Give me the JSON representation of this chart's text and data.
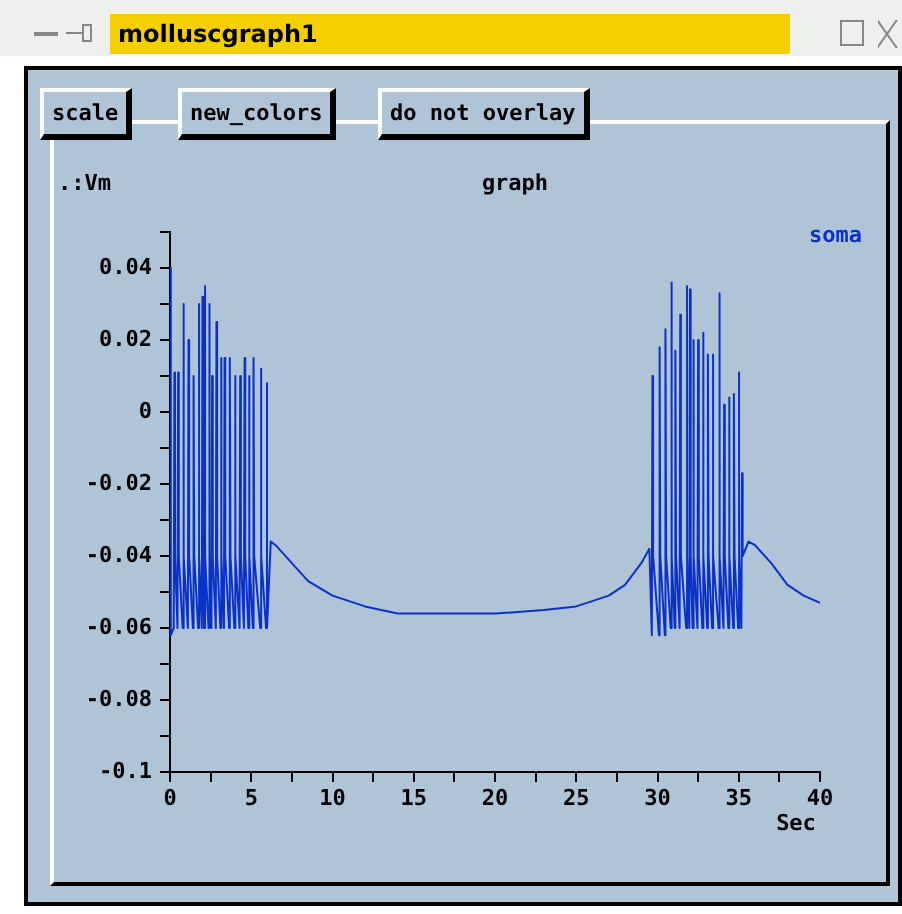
{
  "chart_data": {
    "type": "line",
    "title": "graph",
    "ylabel": ".:Vm",
    "xlabel": "Sec",
    "series": [
      {
        "name": "soma",
        "color": "#0a32c8",
        "x": [
          0,
          0.05,
          0.23,
          0.27,
          0.31,
          0.46,
          0.5,
          0.54,
          0.78,
          0.82,
          0.86,
          1.1,
          1.14,
          1.18,
          1.41,
          1.45,
          1.49,
          1.73,
          1.77,
          1.81,
          1.96,
          2.0,
          2.04,
          2.1,
          2.14,
          2.18,
          2.37,
          2.41,
          2.45,
          2.55,
          2.59,
          2.63,
          2.82,
          2.86,
          2.9,
          3.1,
          3.14,
          3.18,
          3.32,
          3.36,
          3.4,
          3.64,
          3.68,
          3.72,
          3.96,
          4.0,
          4.04,
          4.28,
          4.32,
          4.36,
          4.55,
          4.59,
          4.63,
          4.82,
          4.86,
          4.9,
          5.1,
          5.14,
          5.18,
          5.55,
          5.59,
          5.63,
          5.91,
          5.95,
          5.99,
          6.2,
          6.5,
          7.5,
          8.5,
          10,
          12,
          14,
          17,
          20,
          23,
          25,
          27,
          28,
          29,
          29.5,
          29.65,
          29.69,
          29.73,
          30.09,
          30.13,
          30.17,
          30.45,
          30.49,
          30.53,
          30.81,
          30.85,
          30.89,
          31.06,
          31.1,
          31.14,
          31.36,
          31.4,
          31.44,
          31.76,
          31.8,
          31.84,
          31.96,
          32.0,
          32.04,
          32.16,
          32.2,
          32.24,
          32.46,
          32.5,
          32.54,
          32.76,
          32.8,
          32.84,
          33.06,
          33.1,
          33.14,
          33.36,
          33.4,
          33.44,
          33.76,
          33.8,
          33.84,
          34.06,
          34.1,
          34.14,
          34.36,
          34.4,
          34.44,
          34.66,
          34.7,
          34.74,
          34.96,
          35.0,
          35.04,
          35.16,
          35.2,
          35.24,
          35.6,
          36,
          37,
          38,
          39,
          40
        ],
        "values": [
          0.04,
          -0.062,
          -0.06,
          0.011,
          -0.04,
          -0.06,
          0.011,
          -0.04,
          -0.06,
          0.03,
          -0.04,
          -0.06,
          0.02,
          -0.04,
          -0.06,
          0.01,
          -0.04,
          -0.06,
          0.03,
          -0.04,
          -0.06,
          0.032,
          -0.04,
          -0.06,
          0.035,
          -0.04,
          -0.06,
          0.03,
          -0.04,
          -0.06,
          0.01,
          -0.04,
          -0.06,
          0.025,
          -0.04,
          -0.06,
          0.015,
          -0.04,
          -0.06,
          0.015,
          -0.04,
          -0.06,
          0.015,
          -0.04,
          -0.06,
          0.01,
          -0.04,
          -0.06,
          0.01,
          -0.04,
          -0.06,
          0.015,
          -0.04,
          -0.06,
          0.01,
          -0.04,
          -0.06,
          0.015,
          -0.04,
          -0.06,
          0.012,
          -0.04,
          -0.06,
          0.008,
          -0.06,
          -0.036,
          -0.037,
          -0.042,
          -0.047,
          -0.051,
          -0.054,
          -0.056,
          -0.056,
          -0.056,
          -0.055,
          -0.054,
          -0.051,
          -0.048,
          -0.042,
          -0.038,
          -0.062,
          0.01,
          -0.04,
          -0.062,
          0.018,
          -0.04,
          -0.062,
          0.023,
          -0.04,
          -0.06,
          0.036,
          -0.04,
          -0.06,
          0.017,
          -0.04,
          -0.06,
          0.027,
          -0.04,
          -0.06,
          0.035,
          -0.04,
          -0.06,
          0.034,
          -0.04,
          -0.06,
          0.02,
          -0.04,
          -0.06,
          0.02,
          -0.04,
          -0.06,
          0.022,
          -0.04,
          -0.06,
          0.016,
          -0.04,
          -0.06,
          0.016,
          -0.04,
          -0.06,
          0.033,
          -0.04,
          -0.06,
          0.002,
          -0.04,
          -0.06,
          0.004,
          -0.04,
          -0.06,
          0.005,
          -0.04,
          -0.06,
          0.011,
          -0.04,
          -0.06,
          -0.017,
          -0.04,
          -0.036,
          -0.037,
          -0.042,
          -0.048,
          -0.051,
          -0.053
        ]
      }
    ],
    "xlim": [
      0,
      40
    ],
    "xticks": [
      0,
      {
        "value": 2.5,
        "label": null
      },
      5,
      {
        "value": 7.5,
        "label": null
      },
      10,
      {
        "value": 12.5,
        "label": null
      },
      15,
      {
        "value": 17.5,
        "label": null
      },
      20,
      {
        "value": 22.5,
        "label": null
      },
      25,
      {
        "value": 27.5,
        "label": null
      },
      30,
      {
        "value": 32.5,
        "label": null
      },
      35,
      {
        "value": 37.5,
        "label": null
      },
      40
    ],
    "ylim": [
      -0.1,
      0.05
    ],
    "yticks": [
      -0.1,
      {
        "value": -0.09,
        "label": null
      },
      -0.08,
      {
        "value": -0.07,
        "label": null
      },
      -0.06,
      {
        "value": -0.05,
        "label": null
      },
      -0.04,
      {
        "value": -0.03,
        "label": null
      },
      -0.02,
      {
        "value": -0.01,
        "label": null
      },
      0,
      {
        "value": 0.01,
        "label": null
      },
      0.02,
      {
        "value": 0.03,
        "label": null
      },
      0.04,
      {
        "value": 0.05,
        "label": null
      }
    ],
    "annotations": [
      "molluscgraph1",
      "scale",
      "new_colors",
      "do not overlay"
    ],
    "grid": false,
    "legend": "top right",
    "marker": "none",
    "line_style": "solid"
  }
}
